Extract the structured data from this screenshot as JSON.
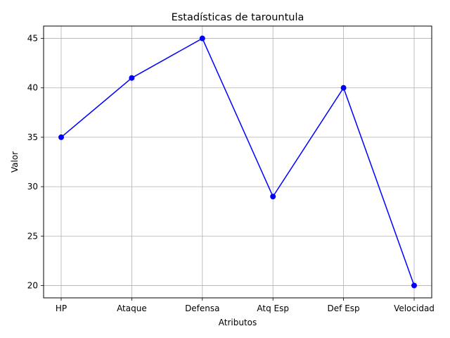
{
  "chart_data": {
    "type": "line",
    "title": "Estadísticas de tarountula",
    "xlabel": "Atributos",
    "ylabel": "Valor",
    "categories": [
      "HP",
      "Ataque",
      "Defensa",
      "Atq Esp",
      "Def Esp",
      "Velocidad"
    ],
    "series": [
      {
        "values": [
          35,
          41,
          45,
          29,
          40,
          20
        ],
        "color": "#0000ff",
        "marker": "circle"
      }
    ],
    "ylim": [
      18.75,
      46.25
    ],
    "yticks": [
      20,
      25,
      30,
      35,
      40,
      45
    ],
    "grid": true,
    "legend": "none"
  }
}
